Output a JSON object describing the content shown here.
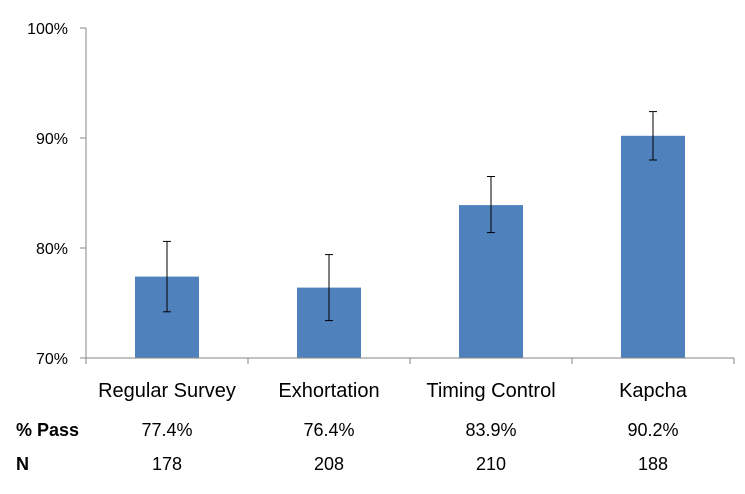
{
  "chart_data": {
    "type": "bar",
    "categories": [
      "Regular Survey",
      "Exhortation",
      "Timing Control",
      "Kapcha"
    ],
    "values": [
      77.4,
      76.4,
      83.9,
      90.2
    ],
    "error_bars": [
      {
        "low": 74.2,
        "high": 80.6
      },
      {
        "low": 73.4,
        "high": 79.4
      },
      {
        "low": 81.4,
        "high": 86.5
      },
      {
        "low": 88.0,
        "high": 92.4
      }
    ],
    "ylim": [
      70,
      100
    ],
    "yticks": [
      "70%",
      "80%",
      "90%",
      "100%"
    ],
    "ytick_values": [
      70,
      80,
      90,
      100
    ],
    "bar_color": "#4f81bd",
    "grid": false,
    "table": {
      "rows": [
        {
          "label": "% Pass",
          "values": [
            "77.4%",
            "76.4%",
            "83.9%",
            "90.2%"
          ]
        },
        {
          "label": "N",
          "values": [
            "178",
            "208",
            "210",
            "188"
          ]
        }
      ]
    }
  }
}
